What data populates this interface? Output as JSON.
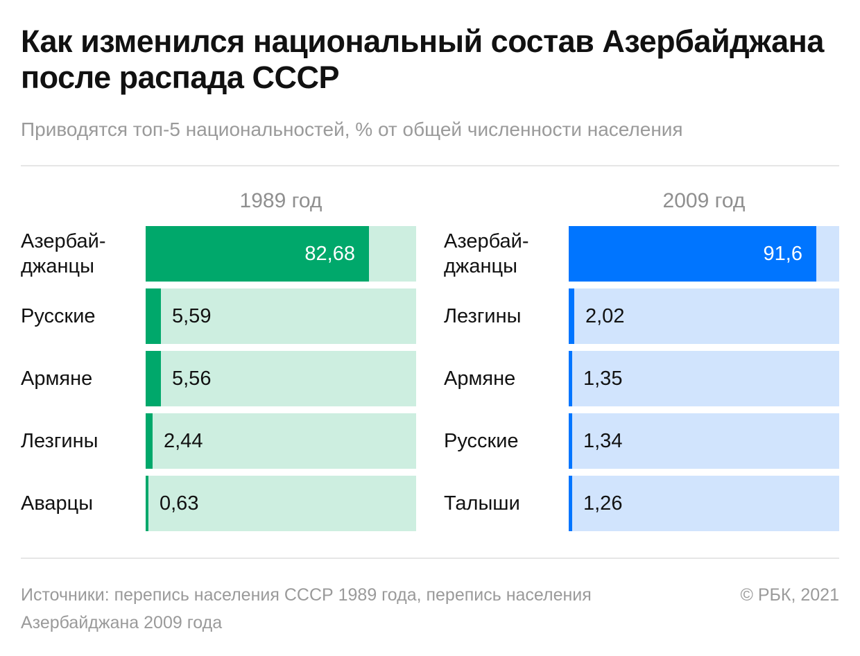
{
  "title": "Как изменился национальный состав Азербайджана после распада СССР",
  "subtitle": "Приводятся топ-5 национальностей, % от общей численности населения",
  "footer": {
    "source": "Источники: перепись населения СССР 1989 года, перепись населения Азербайджана 2009 года",
    "credit": "© РБК, 2021"
  },
  "chart_data": [
    {
      "type": "bar",
      "orientation": "horizontal",
      "title": "1989 год",
      "categories": [
        "Азербай-\nджанцы",
        "Русские",
        "Армяне",
        "Лезгины",
        "Аварцы"
      ],
      "value_labels": [
        "82,68",
        "5,59",
        "5,56",
        "2,44",
        "0,63"
      ],
      "values": [
        82.68,
        5.59,
        5.56,
        2.44,
        0.63
      ],
      "xlim": [
        0,
        100
      ],
      "bar_color": "#00a86b",
      "track_color": "#cdeee0"
    },
    {
      "type": "bar",
      "orientation": "horizontal",
      "title": "2009 год",
      "categories": [
        "Азербай-\nджанцы",
        "Лезгины",
        "Армяне",
        "Русские",
        "Талыши"
      ],
      "value_labels": [
        "91,6",
        "2,02",
        "1,35",
        "1,34",
        "1,26"
      ],
      "values": [
        91.6,
        2.02,
        1.35,
        1.34,
        1.26
      ],
      "xlim": [
        0,
        100
      ],
      "bar_color": "#0075ff",
      "track_color": "#d1e4fd"
    }
  ]
}
